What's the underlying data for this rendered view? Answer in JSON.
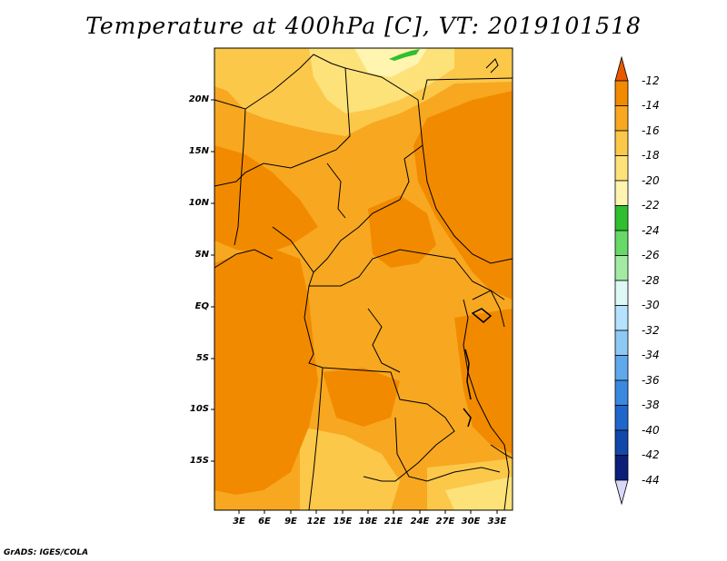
{
  "title": "Temperature at 400hPa [C], VT: 2019101518",
  "credit": "GrADS: IGES/COLA",
  "map": {
    "lat_labels": [
      "20N",
      "15N",
      "10N",
      "5N",
      "EQ",
      "5S",
      "10S",
      "15S"
    ],
    "lon_labels": [
      "3E",
      "6E",
      "9E",
      "12E",
      "15E",
      "18E",
      "21E",
      "24E",
      "27E",
      "30E",
      "33E"
    ]
  },
  "colorbar": {
    "labels": [
      "-12",
      "-14",
      "-16",
      "-18",
      "-20",
      "-22",
      "-24",
      "-26",
      "-28",
      "-30",
      "-32",
      "-34",
      "-36",
      "-38",
      "-40",
      "-42",
      "-44"
    ],
    "colors": [
      "#e85a00",
      "#f28a00",
      "#f7a820",
      "#fcc84a",
      "#fde27a",
      "#fff4b0",
      "#2fbf2f",
      "#66d966",
      "#a3eba3",
      "#ddf8f5",
      "#b5e2ff",
      "#8ec8f5",
      "#5fa8ec",
      "#3a88e0",
      "#1f66cc",
      "#1148aa",
      "#0c1e7a",
      "#d8d8f8"
    ]
  }
}
